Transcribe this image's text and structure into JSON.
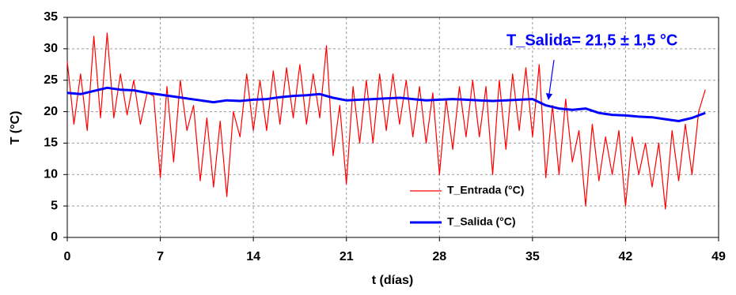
{
  "chart_data": {
    "type": "line",
    "xlabel": "t (días)",
    "ylabel": "T (°C)",
    "annotation": "T_Salida= 21,5 ± 1,5 °C",
    "xlim": [
      0,
      49
    ],
    "xticks": [
      0,
      7,
      14,
      21,
      28,
      35,
      42,
      49
    ],
    "ylim": [
      0,
      35
    ],
    "yticks": [
      0,
      5,
      10,
      15,
      20,
      25,
      30,
      35
    ],
    "grid": true,
    "legend": "lower right",
    "series": [
      {
        "name": "T_Entrada (°C)",
        "color": "#ff0000",
        "x": [
          0,
          0.5,
          1,
          1.5,
          2,
          2.5,
          3,
          3.5,
          4,
          4.5,
          5,
          5.5,
          6,
          6.5,
          7,
          7.5,
          8,
          8.5,
          9,
          9.5,
          10,
          10.5,
          11,
          11.5,
          12,
          12.5,
          13,
          13.5,
          14,
          14.5,
          15,
          15.5,
          16,
          16.5,
          17,
          17.5,
          18,
          18.5,
          19,
          19.5,
          20,
          20.5,
          21,
          21.5,
          22,
          22.5,
          23,
          23.5,
          24,
          24.5,
          25,
          25.5,
          26,
          26.5,
          27,
          27.5,
          28,
          28.5,
          29,
          29.5,
          30,
          30.5,
          31,
          31.5,
          32,
          32.5,
          33,
          33.5,
          34,
          34.5,
          35,
          35.5,
          36,
          36.5,
          37,
          37.5,
          38,
          38.5,
          39,
          39.5,
          40,
          40.5,
          41,
          41.5,
          42,
          42.5,
          43,
          43.5,
          44,
          44.5,
          45,
          45.5,
          46,
          46.5,
          47,
          47.5,
          48
        ],
        "values": [
          28,
          18,
          26,
          17,
          32,
          19,
          32.5,
          19,
          26,
          19.5,
          25,
          18,
          23,
          22.5,
          9.5,
          24,
          12,
          25,
          17,
          21,
          9,
          19,
          8,
          18.5,
          6.5,
          20,
          16,
          26,
          17,
          25,
          17,
          26.5,
          18,
          27,
          19,
          27.5,
          18,
          26,
          19,
          30.5,
          13,
          21,
          8.5,
          24,
          15,
          25,
          15,
          26,
          17,
          26,
          18,
          25,
          16,
          24,
          15,
          23,
          10,
          22,
          14,
          24,
          16,
          25,
          16,
          24,
          10,
          25,
          14,
          26,
          17,
          27,
          16,
          27.5,
          9.5,
          21,
          10,
          22,
          12,
          17,
          5,
          18,
          9,
          16,
          10,
          17,
          5,
          16,
          10,
          15,
          8,
          15,
          4.5,
          17,
          9,
          18,
          10,
          20,
          23.5
        ]
      },
      {
        "name": "T_Salida (°C)",
        "color": "#0000ff",
        "x": [
          0,
          1,
          2,
          3,
          4,
          5,
          6,
          7,
          8,
          9,
          10,
          11,
          12,
          13,
          14,
          15,
          16,
          17,
          18,
          19,
          20,
          21,
          22,
          23,
          24,
          25,
          26,
          27,
          28,
          29,
          30,
          31,
          32,
          33,
          34,
          35,
          36,
          37,
          38,
          39,
          40,
          41,
          42,
          43,
          44,
          45,
          46,
          47,
          48
        ],
        "values": [
          23,
          22.8,
          23.3,
          23.8,
          23.5,
          23.4,
          23,
          22.7,
          22.4,
          22.1,
          21.8,
          21.5,
          21.8,
          21.7,
          21.9,
          22,
          22.3,
          22.5,
          22.6,
          22.8,
          22.2,
          21.8,
          21.9,
          22,
          22.1,
          22.2,
          22,
          21.8,
          21.9,
          22,
          21.9,
          21.8,
          21.7,
          21.8,
          21.9,
          22,
          21,
          20.5,
          20.3,
          20.5,
          19.8,
          19.5,
          19.4,
          19.2,
          19.1,
          18.8,
          18.5,
          19,
          19.8
        ]
      }
    ]
  }
}
